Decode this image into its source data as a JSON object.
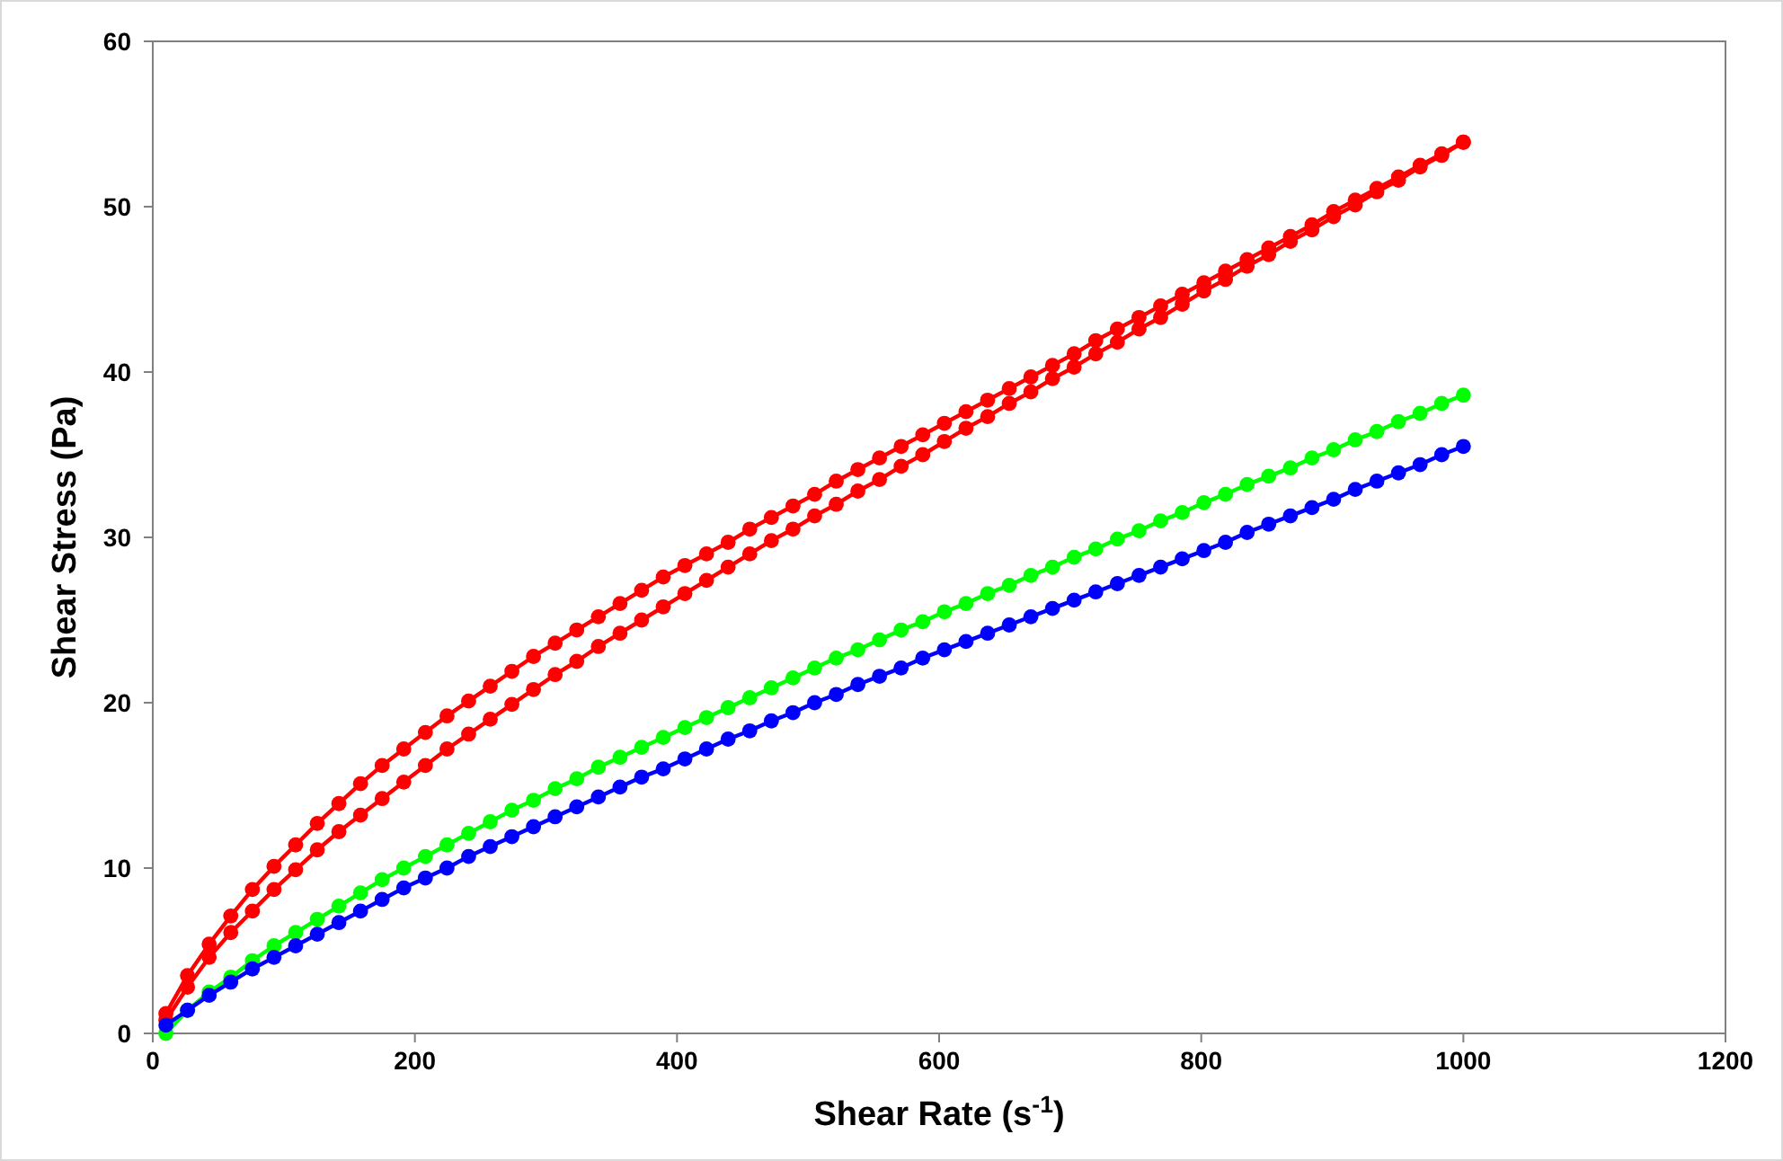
{
  "chart_data": {
    "type": "line",
    "xlabel": "Shear Rate (s$^{-1}$)",
    "ylabel": "Shear Stress (Pa)",
    "xlim": [
      0,
      1200
    ],
    "xticks": [
      0,
      200,
      400,
      600,
      800,
      1000,
      1200
    ],
    "ylim": [
      0,
      60
    ],
    "yticks": [
      0,
      10,
      20,
      30,
      40,
      50,
      60
    ],
    "grid": false,
    "marker": "circle",
    "line_style": "solid",
    "x": [
      10,
      26.5,
      43,
      59.5,
      76,
      92.5,
      109,
      125.5,
      142,
      158.5,
      175,
      191.5,
      208,
      224.5,
      241,
      257.5,
      274,
      290.5,
      307,
      323.5,
      340,
      356.5,
      373,
      389.5,
      406,
      422.5,
      439,
      455.5,
      472,
      488.5,
      505,
      521.5,
      538,
      554.5,
      571,
      587.5,
      604,
      620.5,
      637,
      653.5,
      670,
      686.5,
      703,
      719.5,
      736,
      752.5,
      769,
      785.5,
      802,
      818.5,
      835,
      851.5,
      868,
      884.5,
      901,
      917.5,
      934,
      950.5,
      967,
      983.5,
      1000
    ],
    "series": [
      {
        "color": "#ff0000",
        "values": [
          1.2,
          3.5,
          5.4,
          7.1,
          8.7,
          10.1,
          11.4,
          12.7,
          13.9,
          15.1,
          16.2,
          17.2,
          18.2,
          19.2,
          20.1,
          21.0,
          21.9,
          22.8,
          23.6,
          24.4,
          25.2,
          26.0,
          26.8,
          27.6,
          28.3,
          29.0,
          29.7,
          30.5,
          31.2,
          31.9,
          32.6,
          33.4,
          34.1,
          34.8,
          35.5,
          36.2,
          36.9,
          37.6,
          38.3,
          39.0,
          39.7,
          40.4,
          41.1,
          41.9,
          42.6,
          43.3,
          44.0,
          44.7,
          45.4,
          46.1,
          46.8,
          47.5,
          48.2,
          48.9,
          49.7,
          50.4,
          51.1,
          51.8,
          52.5,
          53.2,
          53.9
        ]
      },
      {
        "color": "#ff0000",
        "values": [
          0.8,
          2.8,
          4.6,
          6.1,
          7.4,
          8.7,
          9.9,
          11.1,
          12.2,
          13.2,
          14.2,
          15.2,
          16.2,
          17.2,
          18.1,
          19.0,
          19.9,
          20.8,
          21.7,
          22.5,
          23.4,
          24.2,
          25.0,
          25.8,
          26.6,
          27.4,
          28.2,
          29.0,
          29.8,
          30.5,
          31.3,
          32.0,
          32.8,
          33.5,
          34.3,
          35.0,
          35.8,
          36.6,
          37.3,
          38.1,
          38.8,
          39.6,
          40.3,
          41.1,
          41.8,
          42.6,
          43.3,
          44.1,
          44.9,
          45.6,
          46.4,
          47.1,
          47.9,
          48.6,
          49.4,
          50.1,
          50.9,
          51.6,
          52.4,
          53.1,
          53.9
        ]
      },
      {
        "color": "#00ff00",
        "values": [
          0.0,
          1.4,
          2.5,
          3.4,
          4.4,
          5.3,
          6.1,
          6.9,
          7.7,
          8.5,
          9.3,
          10.0,
          10.7,
          11.4,
          12.1,
          12.8,
          13.5,
          14.1,
          14.8,
          15.4,
          16.1,
          16.7,
          17.3,
          17.9,
          18.5,
          19.1,
          19.7,
          20.3,
          20.9,
          21.5,
          22.1,
          22.7,
          23.2,
          23.8,
          24.4,
          24.9,
          25.5,
          26.0,
          26.6,
          27.1,
          27.7,
          28.2,
          28.8,
          29.3,
          29.9,
          30.4,
          31.0,
          31.5,
          32.1,
          32.6,
          33.2,
          33.7,
          34.2,
          34.8,
          35.3,
          35.9,
          36.4,
          37.0,
          37.5,
          38.1,
          38.6
        ]
      },
      {
        "color": "#0000ff",
        "values": [
          0.5,
          1.4,
          2.3,
          3.1,
          3.9,
          4.6,
          5.3,
          6.0,
          6.7,
          7.4,
          8.1,
          8.8,
          9.4,
          10.0,
          10.7,
          11.3,
          11.9,
          12.5,
          13.1,
          13.7,
          14.3,
          14.9,
          15.5,
          16.0,
          16.6,
          17.2,
          17.8,
          18.3,
          18.9,
          19.4,
          20.0,
          20.5,
          21.1,
          21.6,
          22.1,
          22.7,
          23.2,
          23.7,
          24.2,
          24.7,
          25.2,
          25.7,
          26.2,
          26.7,
          27.2,
          27.7,
          28.2,
          28.7,
          29.2,
          29.7,
          30.3,
          30.8,
          31.3,
          31.8,
          32.3,
          32.9,
          33.4,
          33.9,
          34.4,
          35.0,
          35.5
        ]
      }
    ]
  }
}
